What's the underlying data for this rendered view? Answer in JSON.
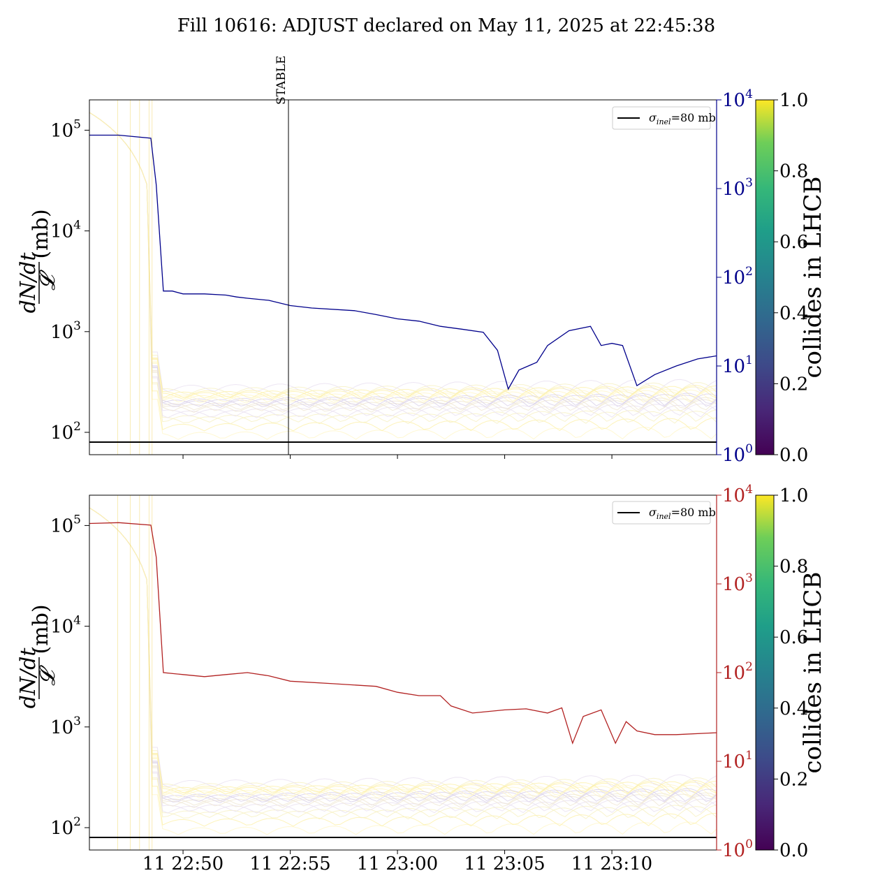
{
  "title": "Fill 10616: ADJUST declared on May 11, 2025 at 22:45:38",
  "chart_data": [
    {
      "type": "line",
      "panel": "top",
      "ylabel": "dN/dt / 𝓛 (mb)",
      "y_scale": "log",
      "ylim": [
        60,
        200000
      ],
      "y_ticks": [
        {
          "value": 100,
          "label": "10",
          "exp": "2"
        },
        {
          "value": 1000,
          "label": "10",
          "exp": "3"
        },
        {
          "value": 10000,
          "label": "10",
          "exp": "4"
        },
        {
          "value": 100000,
          "label": "10",
          "exp": "5"
        }
      ],
      "right_axis": {
        "scale": "log",
        "ylim": [
          1,
          10000
        ],
        "color": "#00008b",
        "ticks": [
          {
            "value": 1,
            "label": "10",
            "exp": "0"
          },
          {
            "value": 10,
            "label": "10",
            "exp": "1"
          },
          {
            "value": 100,
            "label": "10",
            "exp": "2"
          },
          {
            "value": 1000,
            "label": "10",
            "exp": "3"
          },
          {
            "value": 10000,
            "label": "10",
            "exp": "4"
          }
        ]
      },
      "x_range_minutes": [
        "22:45:38",
        "23:14:53"
      ],
      "x_ticks": [
        "11 22:50",
        "11 22:55",
        "11 23:00",
        "11 23:05",
        "11 23:10"
      ],
      "reference_line": {
        "label_sym": "σ",
        "label_sub": "inel",
        "label_rest": "=80 mb",
        "value": 80
      },
      "annotation": {
        "text": "STABLE",
        "time": "22:54:55"
      },
      "series": [
        {
          "color": "#00008b",
          "axis": "right",
          "points": [
            [
              "22:45:38",
              4000
            ],
            [
              "22:47:00",
              4000
            ],
            [
              "22:48:30",
              3700
            ],
            [
              "22:48:45",
              1100
            ],
            [
              "22:49:05",
              70
            ],
            [
              "22:49:30",
              70
            ],
            [
              "22:50:00",
              65
            ],
            [
              "22:51:00",
              65
            ],
            [
              "22:52:00",
              63
            ],
            [
              "22:52:30",
              60
            ],
            [
              "22:53:00",
              58
            ],
            [
              "22:54:00",
              55
            ],
            [
              "22:55:00",
              48
            ],
            [
              "22:56:00",
              45
            ],
            [
              "22:58:00",
              42
            ],
            [
              "22:59:00",
              38
            ],
            [
              "23:00:00",
              34
            ],
            [
              "23:01:00",
              32
            ],
            [
              "23:02:00",
              28
            ],
            [
              "23:03:00",
              26
            ],
            [
              "23:04:00",
              24
            ],
            [
              "23:04:40",
              15
            ],
            [
              "23:05:10",
              5.5
            ],
            [
              "23:05:40",
              9
            ],
            [
              "23:06:30",
              11
            ],
            [
              "23:07:00",
              17
            ],
            [
              "23:08:00",
              25
            ],
            [
              "23:09:00",
              28
            ],
            [
              "23:09:30",
              17
            ],
            [
              "23:10:00",
              18
            ],
            [
              "23:10:30",
              17
            ],
            [
              "23:11:10",
              6
            ],
            [
              "23:12:00",
              8
            ],
            [
              "23:13:00",
              10
            ],
            [
              "23:14:00",
              12
            ],
            [
              "23:14:53",
              13
            ]
          ]
        }
      ]
    },
    {
      "type": "line",
      "panel": "bottom",
      "ylabel": "dN/dt / 𝓛 (mb)",
      "y_scale": "log",
      "ylim": [
        60,
        200000
      ],
      "y_ticks": [
        {
          "value": 100,
          "label": "10",
          "exp": "2"
        },
        {
          "value": 1000,
          "label": "10",
          "exp": "3"
        },
        {
          "value": 10000,
          "label": "10",
          "exp": "4"
        },
        {
          "value": 100000,
          "label": "10",
          "exp": "5"
        }
      ],
      "right_axis": {
        "scale": "log",
        "ylim": [
          1,
          10000
        ],
        "color": "#b22222",
        "ticks": [
          {
            "value": 1,
            "label": "10",
            "exp": "0"
          },
          {
            "value": 10,
            "label": "10",
            "exp": "1"
          },
          {
            "value": 100,
            "label": "10",
            "exp": "2"
          },
          {
            "value": 1000,
            "label": "10",
            "exp": "3"
          },
          {
            "value": 10000,
            "label": "10",
            "exp": "4"
          }
        ]
      },
      "x_range_minutes": [
        "22:45:38",
        "23:14:53"
      ],
      "x_ticks": [
        "11 22:50",
        "11 22:55",
        "11 23:00",
        "11 23:05",
        "11 23:10"
      ],
      "reference_line": {
        "label_sym": "σ",
        "label_sub": "inel",
        "label_rest": "=80 mb",
        "value": 80
      },
      "series": [
        {
          "color": "#b22222",
          "axis": "right",
          "points": [
            [
              "22:45:38",
              4800
            ],
            [
              "22:47:00",
              4900
            ],
            [
              "22:48:30",
              4600
            ],
            [
              "22:48:45",
              2000
            ],
            [
              "22:49:05",
              100
            ],
            [
              "22:50:00",
              95
            ],
            [
              "22:51:00",
              90
            ],
            [
              "22:52:00",
              95
            ],
            [
              "22:53:00",
              100
            ],
            [
              "22:54:00",
              92
            ],
            [
              "22:55:00",
              80
            ],
            [
              "22:57:00",
              75
            ],
            [
              "22:59:00",
              70
            ],
            [
              "23:00:00",
              60
            ],
            [
              "23:01:00",
              55
            ],
            [
              "23:02:00",
              55
            ],
            [
              "23:02:30",
              42
            ],
            [
              "23:03:30",
              35
            ],
            [
              "23:05:00",
              38
            ],
            [
              "23:06:00",
              39
            ],
            [
              "23:07:00",
              35
            ],
            [
              "23:07:40",
              40
            ],
            [
              "23:08:10",
              16
            ],
            [
              "23:08:40",
              32
            ],
            [
              "23:09:30",
              38
            ],
            [
              "23:10:10",
              16
            ],
            [
              "23:10:40",
              28
            ],
            [
              "23:11:10",
              22
            ],
            [
              "23:12:00",
              20
            ],
            [
              "23:13:00",
              20
            ],
            [
              "23:14:53",
              21
            ]
          ]
        }
      ]
    }
  ],
  "colorbar": {
    "label": "collides in LHCB",
    "ticks": [
      "0.0",
      "0.2",
      "0.4",
      "0.6",
      "0.8",
      "1.0"
    ]
  }
}
